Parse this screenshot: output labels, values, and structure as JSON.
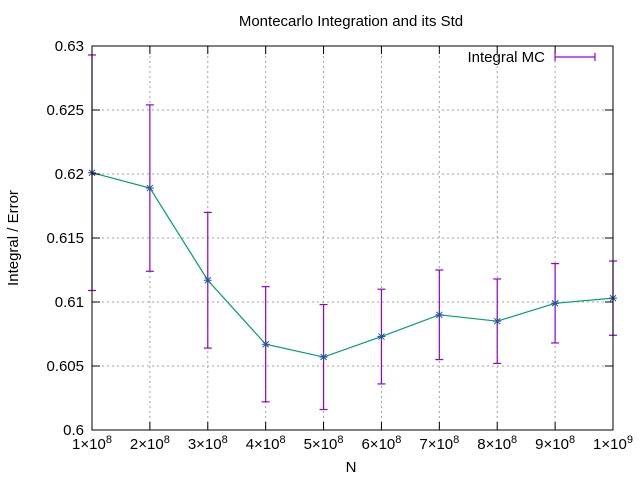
{
  "chart_data": {
    "type": "line",
    "title": "Montecarlo Integration and its Std",
    "xlabel": "N",
    "ylabel": "Integral / Error",
    "xlim": [
      100000000,
      1000000000
    ],
    "ylim": [
      0.6,
      0.63
    ],
    "x_ticks": [
      {
        "label": "1×10",
        "exp": "8"
      },
      {
        "label": "2×10",
        "exp": "8"
      },
      {
        "label": "3×10",
        "exp": "8"
      },
      {
        "label": "4×10",
        "exp": "8"
      },
      {
        "label": "5×10",
        "exp": "8"
      },
      {
        "label": "6×10",
        "exp": "8"
      },
      {
        "label": "7×10",
        "exp": "8"
      },
      {
        "label": "8×10",
        "exp": "8"
      },
      {
        "label": "9×10",
        "exp": "8"
      },
      {
        "label": "1×10",
        "exp": "9"
      }
    ],
    "x_tick_values": [
      100000000,
      200000000,
      300000000,
      400000000,
      500000000,
      600000000,
      700000000,
      800000000,
      900000000,
      1000000000
    ],
    "y_ticks": [
      "0.6",
      "0.605",
      "0.61",
      "0.615",
      "0.62",
      "0.625",
      "0.63"
    ],
    "y_tick_values": [
      0.6,
      0.605,
      0.61,
      0.615,
      0.62,
      0.625,
      0.63
    ],
    "grid": true,
    "legend_position": "top-right",
    "series": [
      {
        "name": "Integral MC",
        "line_color": "#009e73",
        "errorbar_color": "#9400d3",
        "x": [
          100000000,
          200000000,
          300000000,
          400000000,
          500000000,
          600000000,
          700000000,
          800000000,
          900000000,
          1000000000
        ],
        "y": [
          0.6201,
          0.6189,
          0.6117,
          0.6067,
          0.6057,
          0.6073,
          0.609,
          0.6085,
          0.6099,
          0.6103
        ],
        "error": [
          0.0092,
          0.0065,
          0.0053,
          0.0045,
          0.0041,
          0.0037,
          0.0035,
          0.0033,
          0.0031,
          0.0029
        ]
      }
    ]
  }
}
